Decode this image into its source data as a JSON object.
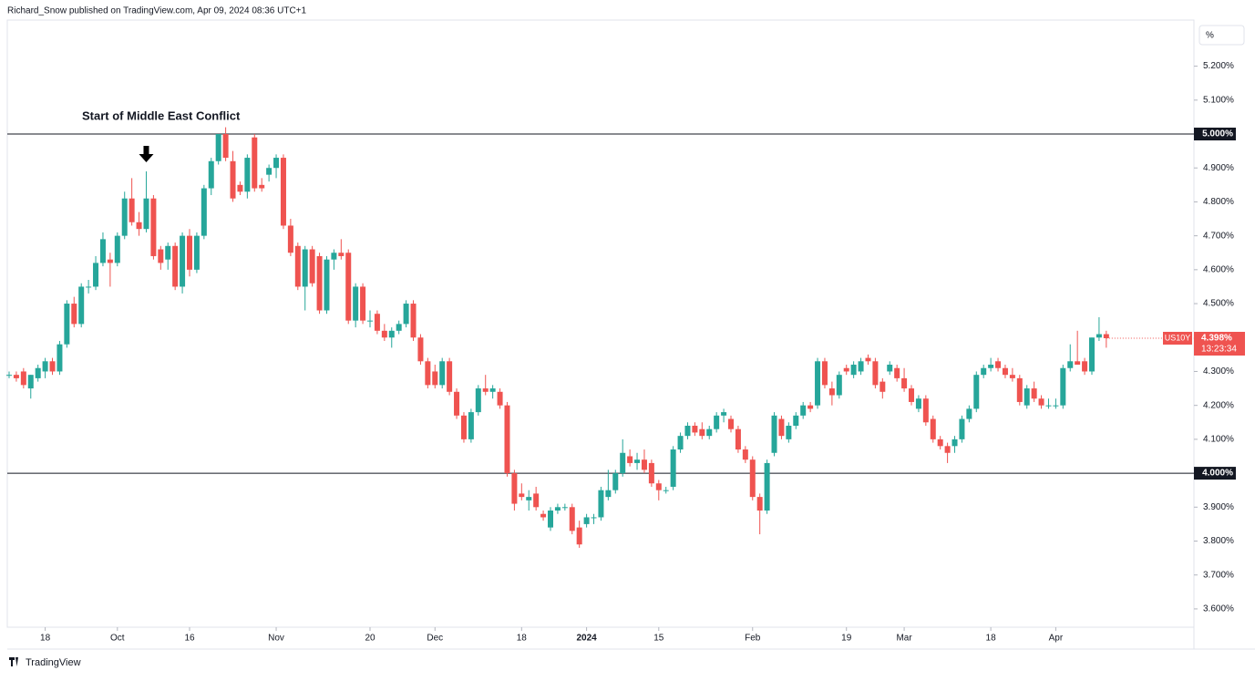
{
  "header": "Richard_Snow published on TradingView.com, Apr 09, 2024 08:36 UTC+1",
  "footer": "TradingView",
  "unit_button": "%",
  "chart_data": {
    "type": "candlestick",
    "symbol": "US10Y",
    "last_price_label": "4.398%",
    "countdown": "13:23:34",
    "up_color": "#26a69a",
    "down_color": "#ef5350",
    "annotation": {
      "text": "Start of Middle East Conflict",
      "index": 19
    },
    "ylim": [
      3.546,
      5.336
    ],
    "yticks": [
      {
        "value": 3.6,
        "label": "3.600%"
      },
      {
        "value": 3.7,
        "label": "3.700%"
      },
      {
        "value": 3.8,
        "label": "3.800%"
      },
      {
        "value": 3.9,
        "label": "3.900%"
      },
      {
        "value": 4.0,
        "label": "4.000%"
      },
      {
        "value": 4.1,
        "label": "4.100%"
      },
      {
        "value": 4.2,
        "label": "4.200%"
      },
      {
        "value": 4.3,
        "label": "4.300%"
      },
      {
        "value": 4.4,
        "label": "4.400%"
      },
      {
        "value": 4.5,
        "label": "4.500%"
      },
      {
        "value": 4.6,
        "label": "4.600%"
      },
      {
        "value": 4.7,
        "label": "4.700%"
      },
      {
        "value": 4.8,
        "label": "4.800%"
      },
      {
        "value": 4.9,
        "label": "4.900%"
      },
      {
        "value": 5.0,
        "label": "5.000%"
      },
      {
        "value": 5.1,
        "label": "5.100%"
      },
      {
        "value": 5.2,
        "label": "5.200%"
      }
    ],
    "hlines": [
      {
        "value": 5.0,
        "label": "5.000%"
      },
      {
        "value": 4.0,
        "label": "4.000%"
      }
    ],
    "xticks": [
      {
        "value": 5,
        "label": "18"
      },
      {
        "value": 15,
        "label": "Oct"
      },
      {
        "value": 25,
        "label": "16"
      },
      {
        "value": 37,
        "label": "Nov"
      },
      {
        "value": 50,
        "label": "20"
      },
      {
        "value": 59,
        "label": "Dec"
      },
      {
        "value": 71,
        "label": "18"
      },
      {
        "value": 80,
        "label": "2024"
      },
      {
        "value": 90,
        "label": "15"
      },
      {
        "value": 103,
        "label": "Feb"
      },
      {
        "value": 116,
        "label": "19"
      },
      {
        "value": 124,
        "label": "Mar"
      },
      {
        "value": 136,
        "label": "18"
      },
      {
        "value": 145,
        "label": "Apr"
      }
    ],
    "ohlc": [
      [
        4.29,
        4.3,
        4.28,
        4.29
      ],
      [
        4.29,
        4.3,
        4.27,
        4.28
      ],
      [
        4.3,
        4.31,
        4.25,
        4.26
      ],
      [
        4.25,
        4.29,
        4.22,
        4.29
      ],
      [
        4.28,
        4.32,
        4.27,
        4.31
      ],
      [
        4.3,
        4.34,
        4.28,
        4.33
      ],
      [
        4.33,
        4.34,
        4.29,
        4.3
      ],
      [
        4.3,
        4.39,
        4.29,
        4.38
      ],
      [
        4.38,
        4.51,
        4.37,
        4.5
      ],
      [
        4.5,
        4.52,
        4.43,
        4.44
      ],
      [
        4.44,
        4.56,
        4.43,
        4.55
      ],
      [
        4.55,
        4.57,
        4.53,
        4.55
      ],
      [
        4.55,
        4.64,
        4.54,
        4.62
      ],
      [
        4.62,
        4.71,
        4.61,
        4.69
      ],
      [
        4.63,
        4.65,
        4.55,
        4.62
      ],
      [
        4.62,
        4.71,
        4.61,
        4.7
      ],
      [
        4.7,
        4.83,
        4.69,
        4.81
      ],
      [
        4.81,
        4.87,
        4.73,
        4.74
      ],
      [
        4.74,
        4.77,
        4.7,
        4.72
      ],
      [
        4.72,
        4.89,
        4.71,
        4.81
      ],
      [
        4.81,
        4.82,
        4.63,
        4.64
      ],
      [
        4.66,
        4.67,
        4.6,
        4.62
      ],
      [
        4.63,
        4.68,
        4.6,
        4.67
      ],
      [
        4.67,
        4.68,
        4.54,
        4.55
      ],
      [
        4.55,
        4.71,
        4.53,
        4.7
      ],
      [
        4.7,
        4.72,
        4.58,
        4.6
      ],
      [
        4.6,
        4.71,
        4.59,
        4.7
      ],
      [
        4.7,
        4.85,
        4.69,
        4.84
      ],
      [
        4.84,
        4.93,
        4.82,
        4.92
      ],
      [
        4.92,
        5.0,
        4.91,
        5.0
      ],
      [
        5.0,
        5.02,
        4.92,
        4.93
      ],
      [
        4.92,
        4.95,
        4.8,
        4.81
      ],
      [
        4.85,
        4.86,
        4.82,
        4.83
      ],
      [
        4.83,
        4.94,
        4.81,
        4.93
      ],
      [
        4.99,
        5.0,
        4.83,
        4.84
      ],
      [
        4.85,
        4.87,
        4.83,
        4.84
      ],
      [
        4.88,
        4.91,
        4.86,
        4.9
      ],
      [
        4.9,
        4.94,
        4.87,
        4.93
      ],
      [
        4.93,
        4.94,
        4.72,
        4.73
      ],
      [
        4.73,
        4.75,
        4.64,
        4.65
      ],
      [
        4.67,
        4.68,
        4.54,
        4.55
      ],
      [
        4.55,
        4.67,
        4.48,
        4.66
      ],
      [
        4.66,
        4.67,
        4.55,
        4.56
      ],
      [
        4.64,
        4.65,
        4.47,
        4.48
      ],
      [
        4.48,
        4.64,
        4.47,
        4.63
      ],
      [
        4.63,
        4.66,
        4.6,
        4.65
      ],
      [
        4.65,
        4.69,
        4.63,
        4.64
      ],
      [
        4.65,
        4.66,
        4.44,
        4.45
      ],
      [
        4.45,
        4.56,
        4.43,
        4.55
      ],
      [
        4.55,
        4.56,
        4.44,
        4.45
      ],
      [
        4.45,
        4.48,
        4.43,
        4.45
      ],
      [
        4.47,
        4.48,
        4.41,
        4.42
      ],
      [
        4.42,
        4.44,
        4.39,
        4.4
      ],
      [
        4.4,
        4.43,
        4.37,
        4.42
      ],
      [
        4.42,
        4.45,
        4.41,
        4.44
      ],
      [
        4.44,
        4.51,
        4.43,
        4.5
      ],
      [
        4.5,
        4.51,
        4.39,
        4.4
      ],
      [
        4.4,
        4.41,
        4.32,
        4.33
      ],
      [
        4.33,
        4.34,
        4.25,
        4.26
      ],
      [
        4.3,
        4.32,
        4.25,
        4.26
      ],
      [
        4.26,
        4.34,
        4.25,
        4.33
      ],
      [
        4.33,
        4.34,
        4.23,
        4.24
      ],
      [
        4.24,
        4.25,
        4.16,
        4.17
      ],
      [
        4.17,
        4.18,
        4.09,
        4.1
      ],
      [
        4.1,
        4.19,
        4.09,
        4.18
      ],
      [
        4.18,
        4.26,
        4.17,
        4.25
      ],
      [
        4.25,
        4.29,
        4.23,
        4.24
      ],
      [
        4.24,
        4.26,
        4.22,
        4.25
      ],
      [
        4.24,
        4.25,
        4.19,
        4.2
      ],
      [
        4.2,
        4.21,
        3.99,
        4.0
      ],
      [
        4.0,
        4.01,
        3.89,
        3.91
      ],
      [
        3.94,
        3.97,
        3.92,
        3.93
      ],
      [
        3.92,
        3.95,
        3.89,
        3.93
      ],
      [
        3.94,
        3.96,
        3.89,
        3.9
      ],
      [
        3.88,
        3.89,
        3.86,
        3.87
      ],
      [
        3.84,
        3.9,
        3.83,
        3.89
      ],
      [
        3.89,
        3.91,
        3.88,
        3.9
      ],
      [
        3.9,
        3.91,
        3.89,
        3.9
      ],
      [
        3.9,
        3.91,
        3.82,
        3.83
      ],
      [
        3.84,
        3.86,
        3.78,
        3.79
      ],
      [
        3.85,
        3.88,
        3.84,
        3.87
      ],
      [
        3.87,
        3.88,
        3.85,
        3.87
      ],
      [
        3.87,
        3.96,
        3.86,
        3.95
      ],
      [
        3.93,
        4.01,
        3.92,
        3.95
      ],
      [
        3.95,
        4.01,
        3.94,
        4.0
      ],
      [
        4.0,
        4.1,
        3.99,
        4.06
      ],
      [
        4.05,
        4.07,
        4.02,
        4.03
      ],
      [
        4.03,
        4.06,
        4.01,
        4.04
      ],
      [
        4.04,
        4.07,
        4.0,
        4.01
      ],
      [
        4.03,
        4.04,
        3.96,
        3.97
      ],
      [
        3.97,
        3.98,
        3.92,
        3.95
      ],
      [
        3.95,
        3.96,
        3.94,
        3.95
      ],
      [
        3.96,
        4.08,
        3.95,
        4.07
      ],
      [
        4.07,
        4.12,
        4.06,
        4.11
      ],
      [
        4.11,
        4.15,
        4.1,
        4.14
      ],
      [
        4.14,
        4.15,
        4.11,
        4.12
      ],
      [
        4.13,
        4.15,
        4.1,
        4.11
      ],
      [
        4.11,
        4.14,
        4.1,
        4.13
      ],
      [
        4.13,
        4.18,
        4.12,
        4.17
      ],
      [
        4.17,
        4.19,
        4.15,
        4.18
      ],
      [
        4.16,
        4.17,
        4.12,
        4.13
      ],
      [
        4.13,
        4.14,
        4.06,
        4.07
      ],
      [
        4.07,
        4.08,
        4.03,
        4.04
      ],
      [
        4.04,
        4.05,
        3.92,
        3.93
      ],
      [
        3.93,
        3.94,
        3.82,
        3.89
      ],
      [
        3.89,
        4.04,
        3.88,
        4.03
      ],
      [
        4.06,
        4.18,
        4.05,
        4.17
      ],
      [
        4.16,
        4.17,
        4.1,
        4.11
      ],
      [
        4.1,
        4.15,
        4.09,
        4.14
      ],
      [
        4.14,
        4.18,
        4.13,
        4.17
      ],
      [
        4.17,
        4.21,
        4.16,
        4.2
      ],
      [
        4.2,
        4.21,
        4.18,
        4.19
      ],
      [
        4.2,
        4.34,
        4.19,
        4.33
      ],
      [
        4.33,
        4.34,
        4.25,
        4.26
      ],
      [
        4.25,
        4.27,
        4.2,
        4.23
      ],
      [
        4.23,
        4.3,
        4.22,
        4.29
      ],
      [
        4.31,
        4.32,
        4.29,
        4.3
      ],
      [
        4.29,
        4.33,
        4.28,
        4.32
      ],
      [
        4.3,
        4.34,
        4.29,
        4.33
      ],
      [
        4.34,
        4.35,
        4.32,
        4.33
      ],
      [
        4.33,
        4.34,
        4.25,
        4.26
      ],
      [
        4.27,
        4.28,
        4.22,
        4.24
      ],
      [
        4.3,
        4.33,
        4.29,
        4.32
      ],
      [
        4.31,
        4.32,
        4.27,
        4.28
      ],
      [
        4.28,
        4.31,
        4.24,
        4.25
      ],
      [
        4.25,
        4.26,
        4.2,
        4.21
      ],
      [
        4.19,
        4.23,
        4.18,
        4.22
      ],
      [
        4.22,
        4.23,
        4.14,
        4.15
      ],
      [
        4.16,
        4.17,
        4.09,
        4.1
      ],
      [
        4.1,
        4.11,
        4.07,
        4.08
      ],
      [
        4.08,
        4.09,
        4.03,
        4.06
      ],
      [
        4.08,
        4.11,
        4.06,
        4.1
      ],
      [
        4.1,
        4.17,
        4.09,
        4.16
      ],
      [
        4.16,
        4.2,
        4.15,
        4.19
      ],
      [
        4.19,
        4.3,
        4.18,
        4.29
      ],
      [
        4.29,
        4.32,
        4.28,
        4.31
      ],
      [
        4.31,
        4.34,
        4.3,
        4.32
      ],
      [
        4.33,
        4.34,
        4.3,
        4.31
      ],
      [
        4.31,
        4.32,
        4.28,
        4.29
      ],
      [
        4.29,
        4.31,
        4.27,
        4.28
      ],
      [
        4.28,
        4.29,
        4.2,
        4.21
      ],
      [
        4.2,
        4.26,
        4.19,
        4.25
      ],
      [
        4.25,
        4.27,
        4.21,
        4.22
      ],
      [
        4.22,
        4.23,
        4.19,
        4.2
      ],
      [
        4.2,
        4.22,
        4.19,
        4.2
      ],
      [
        4.2,
        4.22,
        4.19,
        4.2
      ],
      [
        4.2,
        4.32,
        4.19,
        4.31
      ],
      [
        4.31,
        4.38,
        4.3,
        4.33
      ],
      [
        4.33,
        4.42,
        4.32,
        4.32
      ],
      [
        4.33,
        4.34,
        4.29,
        4.3
      ],
      [
        4.3,
        4.4,
        4.29,
        4.4
      ],
      [
        4.4,
        4.46,
        4.39,
        4.41
      ],
      [
        4.41,
        4.42,
        4.37,
        4.398
      ]
    ]
  }
}
